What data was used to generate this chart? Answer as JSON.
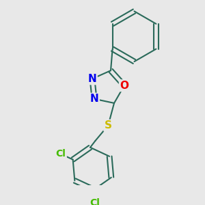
{
  "bg_color": "#e8e8e8",
  "bond_color": "#2a6a5a",
  "bond_width": 1.5,
  "atom_colors": {
    "N": "#0000ee",
    "O": "#ee0000",
    "S": "#ccbb00",
    "Cl": "#44bb00",
    "C": "#2a6a5a"
  },
  "figsize": [
    3.0,
    3.0
  ],
  "dpi": 100,
  "scale": 100
}
